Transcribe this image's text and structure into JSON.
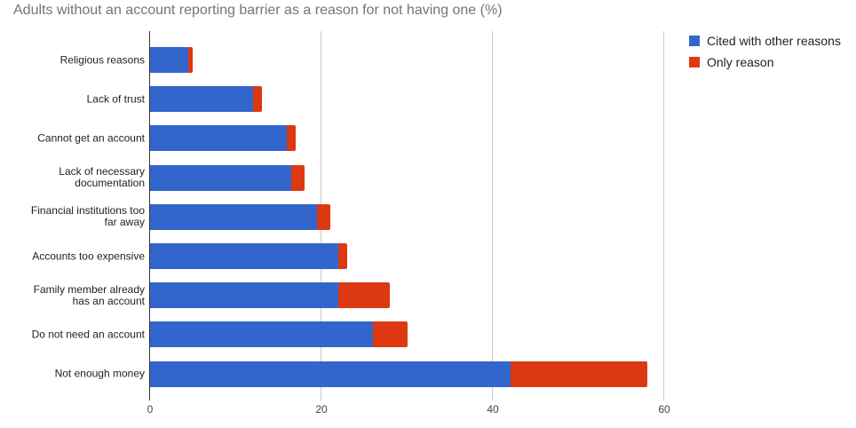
{
  "chart_data": {
    "type": "bar",
    "orientation": "horizontal",
    "stacked": true,
    "title": "Adults without an account reporting barrier as a reason for not having one (%)",
    "xlabel": "",
    "ylabel": "",
    "xlim": [
      0,
      60
    ],
    "x_ticks": [
      "0",
      "20",
      "40",
      "60"
    ],
    "grid": true,
    "legend_position": "right",
    "categories": [
      "Religious reasons",
      "Lack of trust",
      "Cannot get an account",
      "Lack of necessary documentation",
      "Financial institutions too far away",
      "Accounts too expensive",
      "Family member already has an account",
      "Do not need an account",
      "Not enough money"
    ],
    "category_lines": [
      [
        "Religious reasons"
      ],
      [
        "Lack of trust"
      ],
      [
        "Cannot get an account"
      ],
      [
        "Lack of necessary",
        "documentation"
      ],
      [
        "Financial institutions too",
        "far away"
      ],
      [
        "Accounts too expensive"
      ],
      [
        "Family member already",
        "has an account"
      ],
      [
        "Do not need an account"
      ],
      [
        "Not enough money"
      ]
    ],
    "series": [
      {
        "name": "Cited with other reasons",
        "color": "#3366cc",
        "values": [
          4.5,
          12,
          16,
          16.5,
          19.5,
          22,
          22,
          26,
          42
        ]
      },
      {
        "name": "Only reason",
        "color": "#dc3912",
        "values": [
          0.5,
          1,
          1,
          1.5,
          1.5,
          1,
          6,
          4,
          16
        ]
      }
    ]
  }
}
